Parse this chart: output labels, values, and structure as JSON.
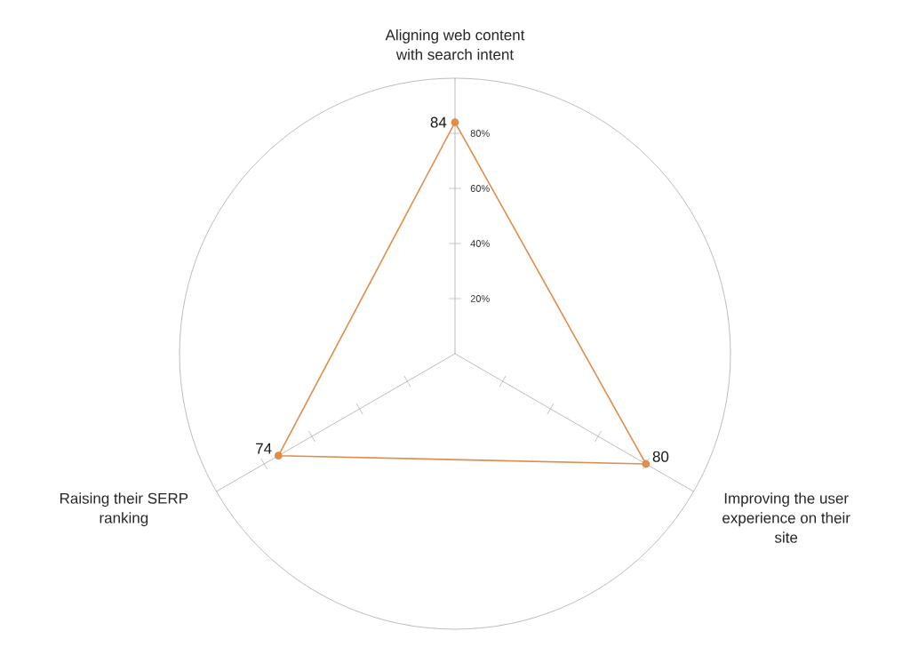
{
  "chart_data": {
    "type": "radar",
    "categories": [
      "Aligning web content with search intent",
      "Improving the user experience on their site",
      "Raising their SERP ranking"
    ],
    "series": [
      {
        "color": "#e08d48",
        "values": [
          84,
          80,
          74
        ]
      }
    ],
    "ylim": [
      0,
      100
    ],
    "yticks": [
      {
        "value": 20,
        "label": "20%"
      },
      {
        "value": 40,
        "label": "40%"
      },
      {
        "value": 60,
        "label": "60%"
      },
      {
        "value": 80,
        "label": "80%"
      }
    ],
    "grid": false,
    "marker": "circle",
    "data_labels": true
  }
}
